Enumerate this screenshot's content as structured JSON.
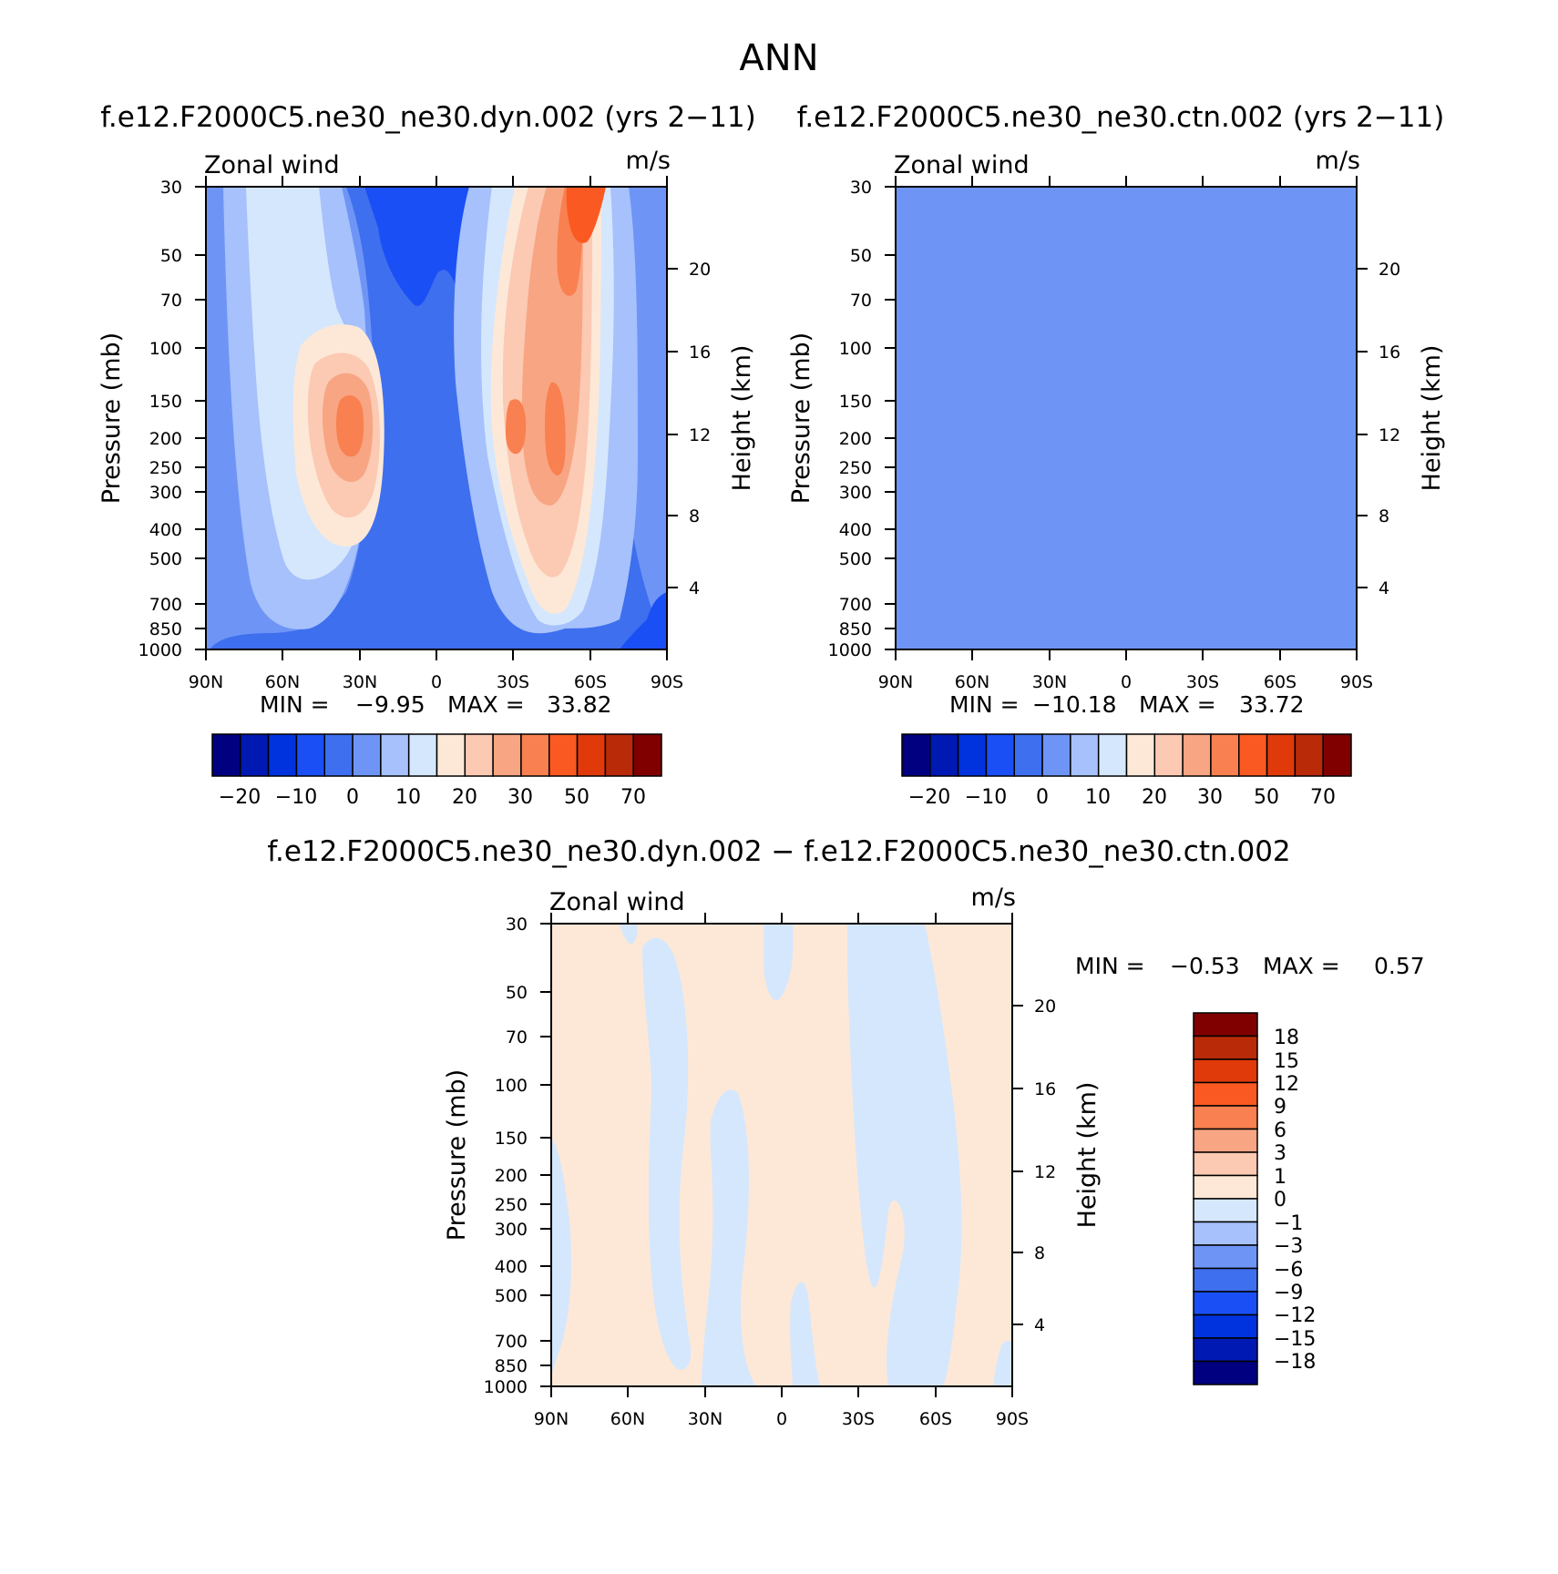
{
  "figure": {
    "title": "ANN",
    "diff_title": "f.e12.F2000C5.ne30_ne30.dyn.002 − f.e12.F2000C5.ne30_ne30.ctn.002"
  },
  "palette": {
    "main": [
      "#000080",
      "#0019b3",
      "#0033dd",
      "#1a4ff5",
      "#3e6fee",
      "#6e95f6",
      "#a6c1fb",
      "#d5e7fd",
      "#fde8d7",
      "#fcc9b3",
      "#f8a583",
      "#f98050",
      "#fa5a22",
      "#e03a0b",
      "#b82a08",
      "#800000"
    ],
    "diff": [
      "#000080",
      "#0019b3",
      "#0033dd",
      "#1a4ff5",
      "#3e6fee",
      "#6e95f6",
      "#a6c1fb",
      "#d5e7fd",
      "#fde8d7",
      "#fcc9b3",
      "#f8a583",
      "#f98050",
      "#fa5a22",
      "#e03a0b",
      "#b82a08",
      "#800000"
    ]
  },
  "chart_data": [
    {
      "type": "heatmap",
      "title": "f.e12.F2000C5.ne30_ne30.dyn.002 (yrs 2−11)",
      "variable": "Zonal wind",
      "units": "m/s",
      "xlabel": "",
      "ylabel": "Pressure (mb)",
      "y2label": "Height (km)",
      "x_ticks": [
        "90N",
        "60N",
        "30N",
        "0",
        "30S",
        "60S",
        "90S"
      ],
      "y_ticks": [
        30,
        50,
        70,
        100,
        150,
        200,
        250,
        300,
        400,
        500,
        700,
        850,
        1000
      ],
      "y_scale": "log",
      "y2_ticks": [
        4,
        8,
        12,
        16,
        20
      ],
      "min_label": "MIN =",
      "min": "−9.95",
      "max_label": "MAX =",
      "max": "33.82",
      "colorbar_labels": [
        "−20",
        "−10",
        "0",
        "10",
        "20",
        "30",
        "50",
        "70"
      ]
    },
    {
      "type": "heatmap",
      "title": "f.e12.F2000C5.ne30_ne30.ctn.002 (yrs 2−11)",
      "variable": "Zonal wind",
      "units": "m/s",
      "xlabel": "",
      "ylabel": "Pressure (mb)",
      "y2label": "Height (km)",
      "x_ticks": [
        "90N",
        "60N",
        "30N",
        "0",
        "30S",
        "60S",
        "90S"
      ],
      "y_ticks": [
        30,
        50,
        70,
        100,
        150,
        200,
        250,
        300,
        400,
        500,
        700,
        850,
        1000
      ],
      "y_scale": "log",
      "y2_ticks": [
        4,
        8,
        12,
        16,
        20
      ],
      "min_label": "MIN =",
      "min": "−10.18",
      "max_label": "MAX =",
      "max": "33.72",
      "colorbar_labels": [
        "−20",
        "−10",
        "0",
        "10",
        "20",
        "30",
        "50",
        "70"
      ]
    },
    {
      "type": "heatmap",
      "title": "",
      "variable": "Zonal wind",
      "units": "m/s",
      "xlabel": "",
      "ylabel": "Pressure (mb)",
      "y2label": "Height (km)",
      "x_ticks": [
        "90N",
        "60N",
        "30N",
        "0",
        "30S",
        "60S",
        "90S"
      ],
      "y_ticks": [
        30,
        50,
        70,
        100,
        150,
        200,
        250,
        300,
        400,
        500,
        700,
        850,
        1000
      ],
      "y_scale": "log",
      "y2_ticks": [
        4,
        8,
        12,
        16,
        20
      ],
      "min_label": "MIN =",
      "min": "−0.53",
      "max_label": "MAX =",
      "max": "0.57",
      "colorbar_labels": [
        "18",
        "15",
        "12",
        "9",
        "6",
        "3",
        "1",
        "0",
        "−1",
        "−3",
        "−6",
        "−9",
        "−12",
        "−15",
        "−18"
      ]
    }
  ]
}
